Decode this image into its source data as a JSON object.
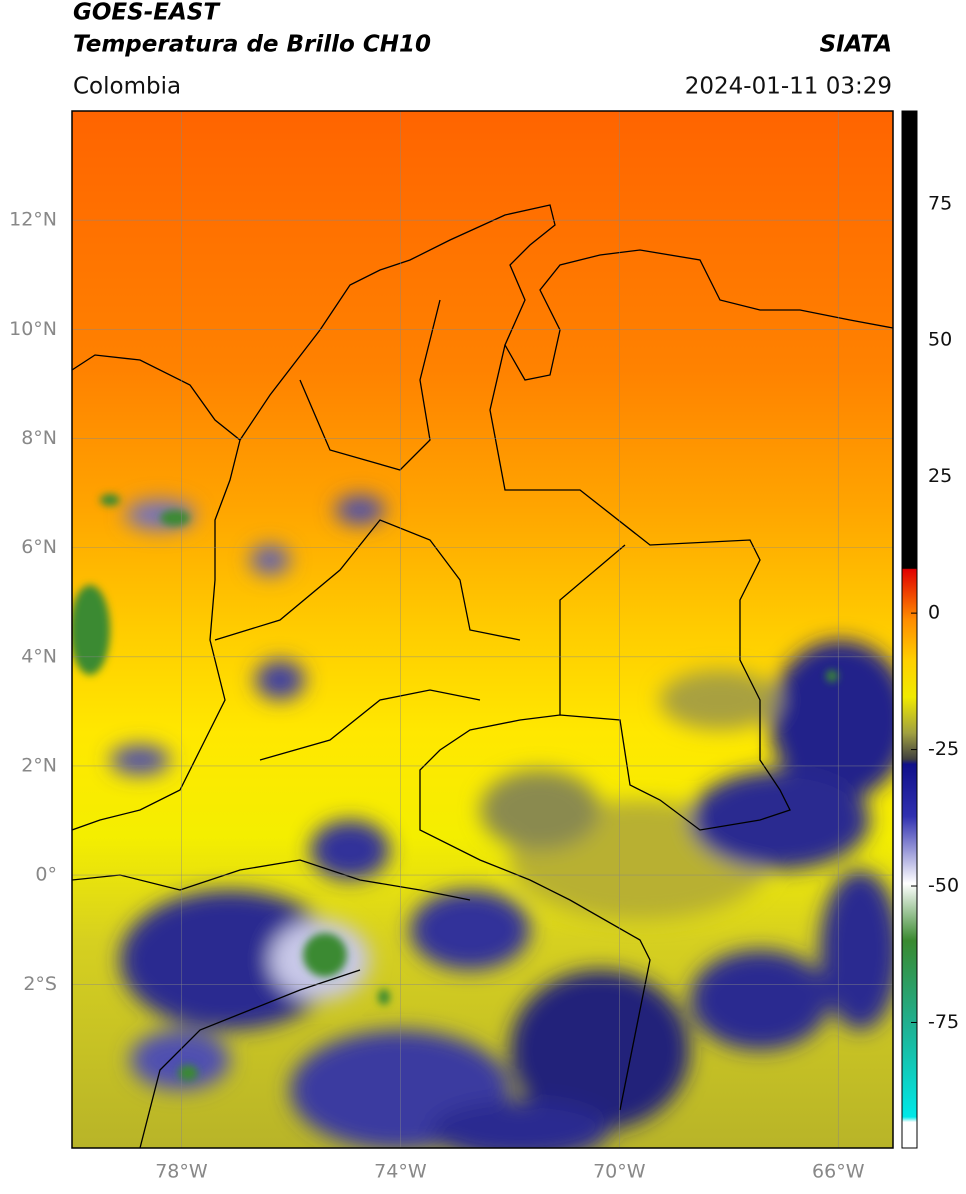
{
  "chart_data": {
    "type": "map",
    "title": "GOES-EAST",
    "subtitle": "Temperatura de Brillo CH10",
    "source": "SIATA",
    "region": "Colombia",
    "timestamp": "2024-01-11 03:29",
    "xlim": [
      -80,
      -65
    ],
    "ylim": [
      -5,
      14
    ],
    "xticks": [
      {
        "value": -78,
        "label": "78°W"
      },
      {
        "value": -74,
        "label": "74°W"
      },
      {
        "value": -70,
        "label": "70°W"
      },
      {
        "value": -66,
        "label": "66°W"
      }
    ],
    "yticks": [
      {
        "value": -2,
        "label": "2°S"
      },
      {
        "value": 0,
        "label": "0°"
      },
      {
        "value": 2,
        "label": "2°N"
      },
      {
        "value": 4,
        "label": "4°N"
      },
      {
        "value": 6,
        "label": "6°N"
      },
      {
        "value": 8,
        "label": "8°N"
      },
      {
        "value": 10,
        "label": "10°N"
      },
      {
        "value": 12,
        "label": "12°N"
      }
    ],
    "colorbar": {
      "lim": [
        -98,
        92
      ],
      "ticks": [
        -75,
        -50,
        -25,
        0,
        25,
        50,
        75
      ]
    },
    "grid": true
  }
}
